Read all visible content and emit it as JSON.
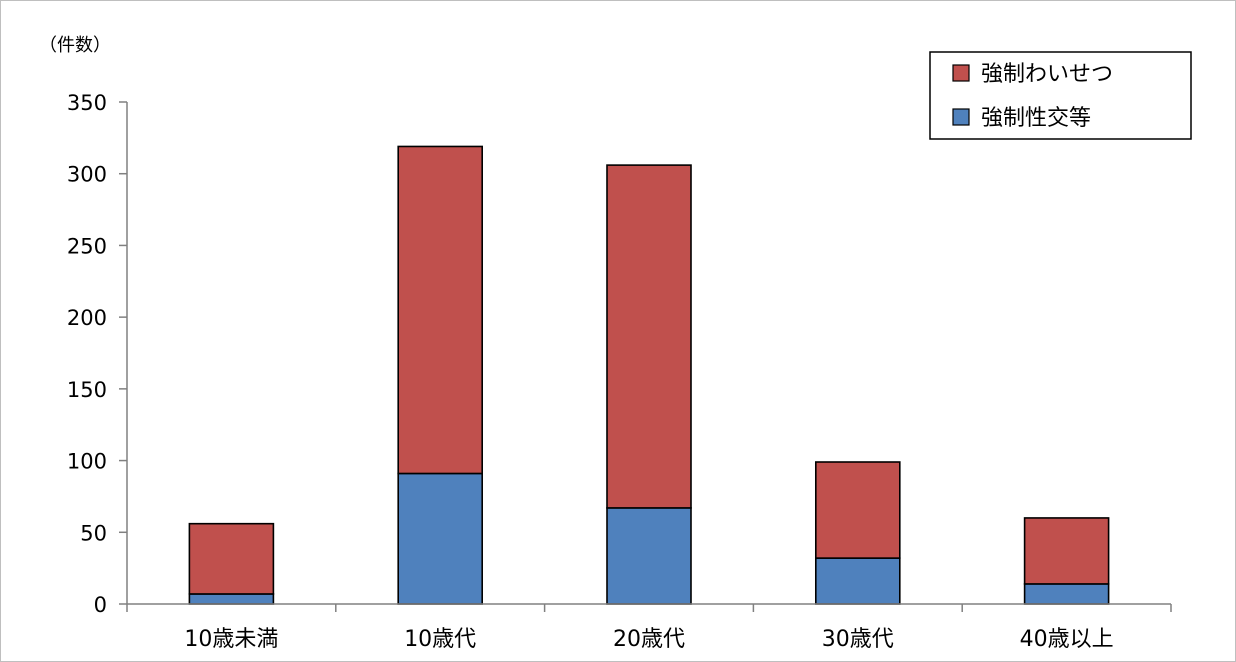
{
  "chart_data": {
    "type": "bar",
    "stacked": true,
    "ylabel": "（件数）",
    "ylim": [
      0,
      350
    ],
    "yticks": [
      0,
      50,
      100,
      150,
      200,
      250,
      300,
      350
    ],
    "categories": [
      "10歳未満",
      "10歳代",
      "20歳代",
      "30歳代",
      "40歳以上"
    ],
    "series": [
      {
        "name": "強制性交等",
        "color": "#4f81bd",
        "values": [
          7,
          91,
          67,
          32,
          14
        ]
      },
      {
        "name": "強制わいせつ",
        "color": "#c0504d",
        "values": [
          49,
          228,
          239,
          67,
          46
        ]
      }
    ],
    "legend": {
      "position": "top-right",
      "order": [
        "強制わいせつ",
        "強制性交等"
      ]
    },
    "grid": false
  }
}
